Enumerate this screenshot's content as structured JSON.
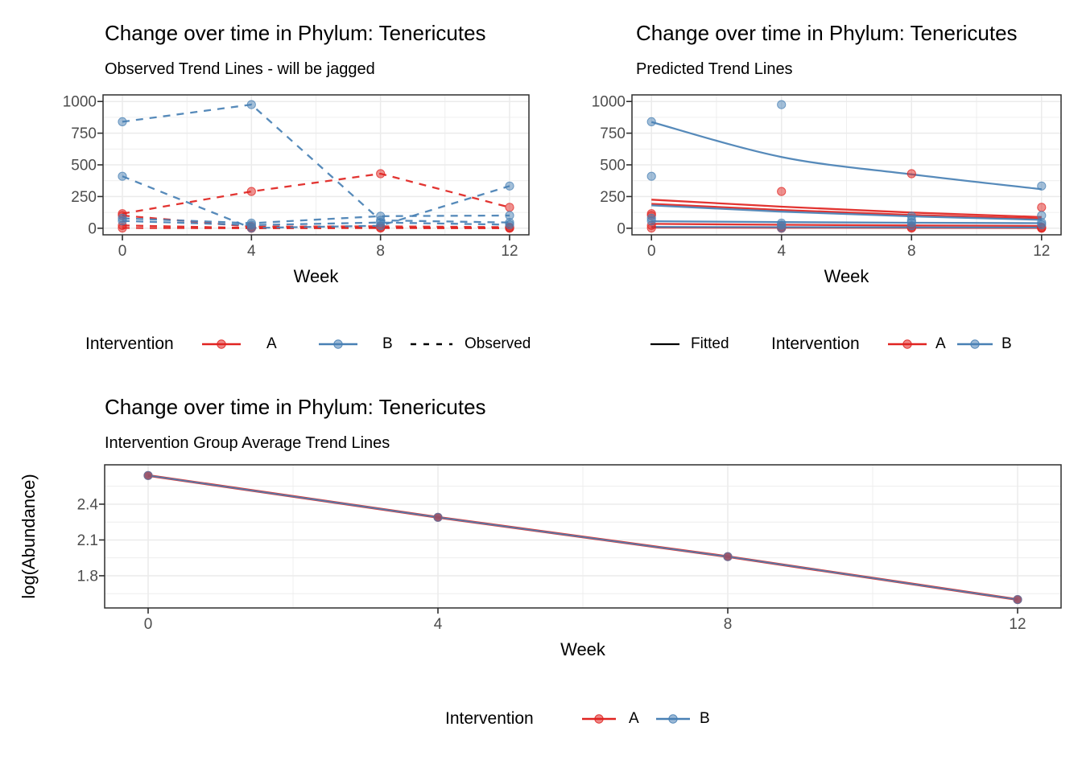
{
  "colors": {
    "A": "#E02320",
    "B": "#4880B4",
    "observed_key": "#000000",
    "fitted_key": "#000000",
    "grid": "#EBEBEB",
    "panel_border": "#2F2F2F",
    "tick_label": "#4D4D4D"
  },
  "legends": {
    "observed": {
      "title": "Intervention",
      "item_a": "A",
      "item_b": "B",
      "linetype_label": "Observed"
    },
    "predicted": {
      "fitted_label": "Fitted",
      "title": "Intervention",
      "item_a": "A",
      "item_b": "B"
    },
    "average": {
      "title": "Intervention",
      "item_a": "A",
      "item_b": "B"
    }
  },
  "chart_data": {
    "observed": {
      "type": "line",
      "title": "Change over time in Phylum: Tenericutes",
      "subtitle": "Observed Trend Lines - will be jagged",
      "xlabel": "Week",
      "ylabel": "",
      "weeks": [
        0,
        4,
        8,
        12
      ],
      "xlim": [
        -0.6,
        12.6
      ],
      "ylim": [
        -52,
        1052
      ],
      "x_ticks": [
        0,
        4,
        8,
        12
      ],
      "x_tick_labels": [
        "0",
        "4",
        "8",
        "12"
      ],
      "x_minor": [
        2,
        6,
        10
      ],
      "y_ticks": [
        0,
        250,
        500,
        750,
        1000
      ],
      "y_tick_labels": [
        "0",
        "250",
        "500",
        "750",
        "1000"
      ],
      "y_minor": [
        125,
        375,
        625,
        875
      ],
      "legend_position": "bottom",
      "grid": true,
      "lines": [
        {
          "g": "A",
          "dash": true,
          "v": [
            115,
            290,
            430,
            165
          ]
        },
        {
          "g": "A",
          "dash": true,
          "v": [
            100,
            12,
            15,
            8
          ]
        },
        {
          "g": "A",
          "dash": true,
          "v": [
            22,
            2,
            4,
            2
          ]
        },
        {
          "g": "A",
          "dash": true,
          "v": [
            2,
            0,
            1,
            0
          ]
        },
        {
          "g": "B",
          "dash": true,
          "v": [
            840,
            975,
            62,
            45
          ]
        },
        {
          "g": "B",
          "dash": true,
          "v": [
            410,
            2,
            20,
            333
          ]
        },
        {
          "g": "B",
          "dash": true,
          "v": [
            78,
            40,
            95,
            100
          ]
        },
        {
          "g": "B",
          "dash": true,
          "v": [
            58,
            25,
            45,
            28
          ]
        }
      ],
      "points": [
        {
          "g": "A",
          "v": [
            115,
            290,
            430,
            165
          ]
        },
        {
          "g": "A",
          "v": [
            100,
            12,
            15,
            8
          ]
        },
        {
          "g": "A",
          "v": [
            22,
            2,
            4,
            2
          ]
        },
        {
          "g": "A",
          "v": [
            2,
            0,
            1,
            0
          ]
        },
        {
          "g": "B",
          "v": [
            840,
            975,
            62,
            45
          ]
        },
        {
          "g": "B",
          "v": [
            410,
            2,
            20,
            333
          ]
        },
        {
          "g": "B",
          "v": [
            78,
            40,
            95,
            100
          ]
        },
        {
          "g": "B",
          "v": [
            58,
            25,
            45,
            28
          ]
        }
      ]
    },
    "predicted": {
      "type": "line+scatter",
      "title": "Change over time in Phylum: Tenericutes",
      "subtitle": "Predicted Trend Lines",
      "xlabel": "Week",
      "ylabel": "",
      "weeks": [
        0,
        4,
        8,
        12
      ],
      "xlim": [
        -0.6,
        12.6
      ],
      "ylim": [
        -52,
        1052
      ],
      "x_ticks": [
        0,
        4,
        8,
        12
      ],
      "x_tick_labels": [
        "0",
        "4",
        "8",
        "12"
      ],
      "x_minor": [
        2,
        6,
        10
      ],
      "y_ticks": [
        0,
        250,
        500,
        750,
        1000
      ],
      "y_tick_labels": [
        "0",
        "250",
        "500",
        "750",
        "1000"
      ],
      "y_minor": [
        125,
        375,
        625,
        875
      ],
      "legend_position": "bottom",
      "grid": true,
      "lines": [
        {
          "g": "A",
          "v": [
            225,
            170,
            124,
            88
          ]
        },
        {
          "g": "A",
          "v": [
            192,
            144,
            105,
            75
          ]
        },
        {
          "g": "A",
          "v": [
            34,
            27,
            22,
            18
          ]
        },
        {
          "g": "A",
          "v": [
            5,
            4,
            3,
            2
          ]
        },
        {
          "g": "B",
          "smooth": true,
          "v": [
            838,
            562,
            425,
            308
          ]
        },
        {
          "g": "B",
          "v": [
            180,
            131,
            94,
            66
          ]
        },
        {
          "g": "B",
          "v": [
            55,
            48,
            43,
            40
          ]
        },
        {
          "g": "B",
          "v": [
            10,
            8,
            7,
            6
          ]
        }
      ],
      "points": [
        {
          "g": "A",
          "v": [
            115,
            290,
            430,
            165
          ]
        },
        {
          "g": "A",
          "v": [
            100,
            12,
            15,
            8
          ]
        },
        {
          "g": "A",
          "v": [
            22,
            2,
            4,
            2
          ]
        },
        {
          "g": "A",
          "v": [
            2,
            0,
            1,
            0
          ]
        },
        {
          "g": "B",
          "v": [
            840,
            975,
            62,
            45
          ]
        },
        {
          "g": "B",
          "v": [
            410,
            2,
            20,
            333
          ]
        },
        {
          "g": "B",
          "v": [
            78,
            40,
            95,
            100
          ]
        },
        {
          "g": "B",
          "v": [
            58,
            25,
            45,
            28
          ]
        }
      ]
    },
    "average": {
      "type": "line",
      "title": "Change over time in Phylum: Tenericutes",
      "subtitle": "Intervention Group Average Trend Lines",
      "xlabel": "Week",
      "ylabel": "log(Abundance)",
      "weeks": [
        0,
        4,
        8,
        12
      ],
      "xlim": [
        -0.6,
        12.6
      ],
      "ylim": [
        1.53,
        2.73
      ],
      "x_ticks": [
        0,
        4,
        8,
        12
      ],
      "x_tick_labels": [
        "0",
        "4",
        "8",
        "12"
      ],
      "x_minor": [
        2,
        6,
        10
      ],
      "y_ticks": [
        1.8,
        2.1,
        2.4
      ],
      "y_tick_labels": [
        "1.8",
        "2.1",
        "2.4"
      ],
      "y_minor": [
        1.65,
        1.95,
        2.25,
        2.55
      ],
      "legend_position": "bottom",
      "grid": true,
      "lines": [
        {
          "g": "A",
          "v": [
            2.64,
            2.29,
            1.96,
            1.6
          ],
          "w": 3.2
        },
        {
          "g": "B",
          "v": [
            2.64,
            2.29,
            1.96,
            1.6
          ],
          "w": 1.9
        }
      ],
      "points": [
        {
          "g": "A",
          "v": [
            2.64,
            2.29,
            1.96,
            1.6
          ],
          "fo": 0.9
        },
        {
          "g": "B",
          "v": [
            2.64,
            2.29,
            1.96,
            1.6
          ],
          "fo": 0.45
        }
      ]
    }
  }
}
